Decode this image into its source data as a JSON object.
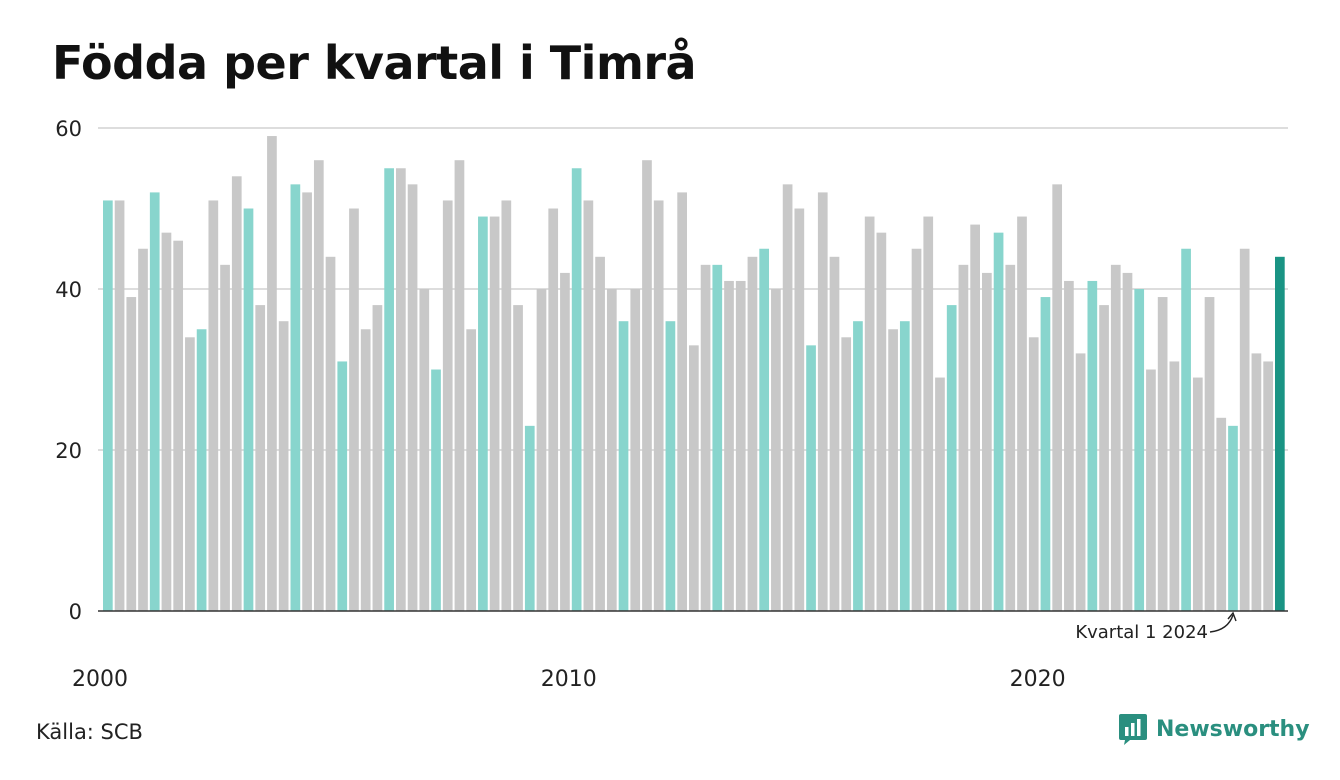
{
  "title": "Födda per kvartal i Timrå",
  "source": "Källa: SCB",
  "brand": "Newsworthy",
  "annotation": "Kvartal 1 2024",
  "colors": {
    "q1": "#88d5cd",
    "other": "#c8c8c8",
    "highlight": "#1a9484",
    "grid": "#dddddd",
    "axis": "#333333",
    "brand": "#2a8f7f"
  },
  "chart_data": {
    "type": "bar",
    "title": "Födda per kvartal i Timrå",
    "xlabel": "",
    "ylabel": "",
    "ylim": [
      0,
      60
    ],
    "yticks": [
      0,
      20,
      40,
      60
    ],
    "xticks": [
      "2000",
      "2010",
      "2020"
    ],
    "start_year": 2000,
    "grid": true,
    "legend": "none",
    "highlight": "Kvartal 1 2024",
    "values": [
      51,
      51,
      39,
      45,
      52,
      47,
      46,
      34,
      35,
      51,
      43,
      54,
      50,
      38,
      59,
      36,
      53,
      52,
      56,
      44,
      31,
      50,
      35,
      38,
      55,
      55,
      53,
      40,
      30,
      51,
      56,
      35,
      49,
      49,
      51,
      38,
      23,
      40,
      50,
      42,
      55,
      51,
      44,
      40,
      36,
      40,
      56,
      51,
      36,
      52,
      33,
      43,
      43,
      41,
      41,
      44,
      45,
      40,
      53,
      50,
      33,
      52,
      44,
      34,
      36,
      49,
      47,
      35,
      36,
      45,
      49,
      29,
      38,
      43,
      48,
      42,
      47,
      43,
      49,
      34,
      39,
      53,
      41,
      32,
      41,
      38,
      43,
      42,
      40,
      30,
      39,
      31,
      45,
      29,
      39,
      24,
      23,
      45,
      32,
      31,
      44
    ]
  }
}
